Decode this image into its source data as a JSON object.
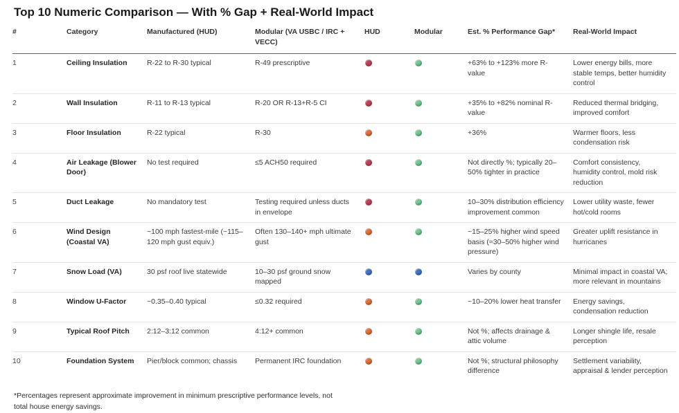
{
  "title": "Top 10 Numeric Comparison — With % Gap + Real-World Impact",
  "footnote": "*Percentages represent approximate improvement in minimum prescriptive performance levels, not total house energy savings.",
  "colors": {
    "red": "#c14257",
    "orange": "#e2703a",
    "green": "#74c893",
    "blue": "#4273cb"
  },
  "table": {
    "headers": [
      "#",
      "Category",
      "Manufactured (HUD)",
      "Modular (VA USBC / IRC + VECC)",
      "HUD",
      "Modular",
      "Est. % Performance Gap*",
      "Real-World Impact"
    ],
    "rows": [
      {
        "num": "1",
        "category": "Ceiling Insulation",
        "manufactured": "R-22 to R-30 typical",
        "modular": "R-49 prescriptive",
        "hud_dot": "red",
        "modular_dot": "green",
        "gap": "+63% to +123% more R-value",
        "impact": "Lower energy bills, more stable temps, better humidity control"
      },
      {
        "num": "2",
        "category": "Wall Insulation",
        "manufactured": "R-11 to R-13 typical",
        "modular": "R-20 OR R-13+R-5 CI",
        "hud_dot": "red",
        "modular_dot": "green",
        "gap": "+35% to +82% nominal R-value",
        "impact": "Reduced thermal bridging, improved comfort"
      },
      {
        "num": "3",
        "category": "Floor Insulation",
        "manufactured": "R-22 typical",
        "modular": "R-30",
        "hud_dot": "orange",
        "modular_dot": "green",
        "gap": "+36%",
        "impact": "Warmer floors, less condensation risk"
      },
      {
        "num": "4",
        "category": "Air Leakage (Blower Door)",
        "manufactured": "No test required",
        "modular": "≤5 ACH50 required",
        "hud_dot": "red",
        "modular_dot": "green",
        "gap": "Not directly %; typically 20–50% tighter in practice",
        "impact": "Comfort consistency, humidity control, mold risk reduction"
      },
      {
        "num": "5",
        "category": "Duct Leakage",
        "manufactured": "No mandatory test",
        "modular": "Testing required unless ducts in envelope",
        "hud_dot": "red",
        "modular_dot": "green",
        "gap": "10–30% distribution efficiency improvement common",
        "impact": "Lower utility waste, fewer hot/cold rooms"
      },
      {
        "num": "6",
        "category": "Wind Design (Coastal VA)",
        "manufactured": "~100 mph fastest-mile (~115–120 mph gust equiv.)",
        "modular": "Often 130–140+ mph ultimate gust",
        "hud_dot": "orange",
        "modular_dot": "green",
        "gap": "~15–25% higher wind speed basis (≈30–50% higher wind pressure)",
        "impact": "Greater uplift resistance in hurricanes"
      },
      {
        "num": "7",
        "category": "Snow Load (VA)",
        "manufactured": "30 psf roof live statewide",
        "modular": "10–30 psf ground snow mapped",
        "hud_dot": "blue",
        "modular_dot": "blue",
        "gap": "Varies by county",
        "impact": "Minimal impact in coastal VA; more relevant in mountains"
      },
      {
        "num": "8",
        "category": "Window U-Factor",
        "manufactured": "~0.35–0.40 typical",
        "modular": "≤0.32 required",
        "hud_dot": "orange",
        "modular_dot": "green",
        "gap": "~10–20% lower heat transfer",
        "impact": "Energy savings, condensation reduction"
      },
      {
        "num": "9",
        "category": "Typical Roof Pitch",
        "manufactured": "2:12–3:12 common",
        "modular": "4:12+ common",
        "hud_dot": "orange",
        "modular_dot": "green",
        "gap": "Not %; affects drainage & attic volume",
        "impact": "Longer shingle life, resale perception"
      },
      {
        "num": "10",
        "category": "Foundation System",
        "manufactured": "Pier/block common; chassis",
        "modular": "Permanent IRC foundation",
        "hud_dot": "orange",
        "modular_dot": "green",
        "gap": "Not %; structural philosophy difference",
        "impact": "Settlement variability, appraisal & lender perception"
      }
    ]
  }
}
